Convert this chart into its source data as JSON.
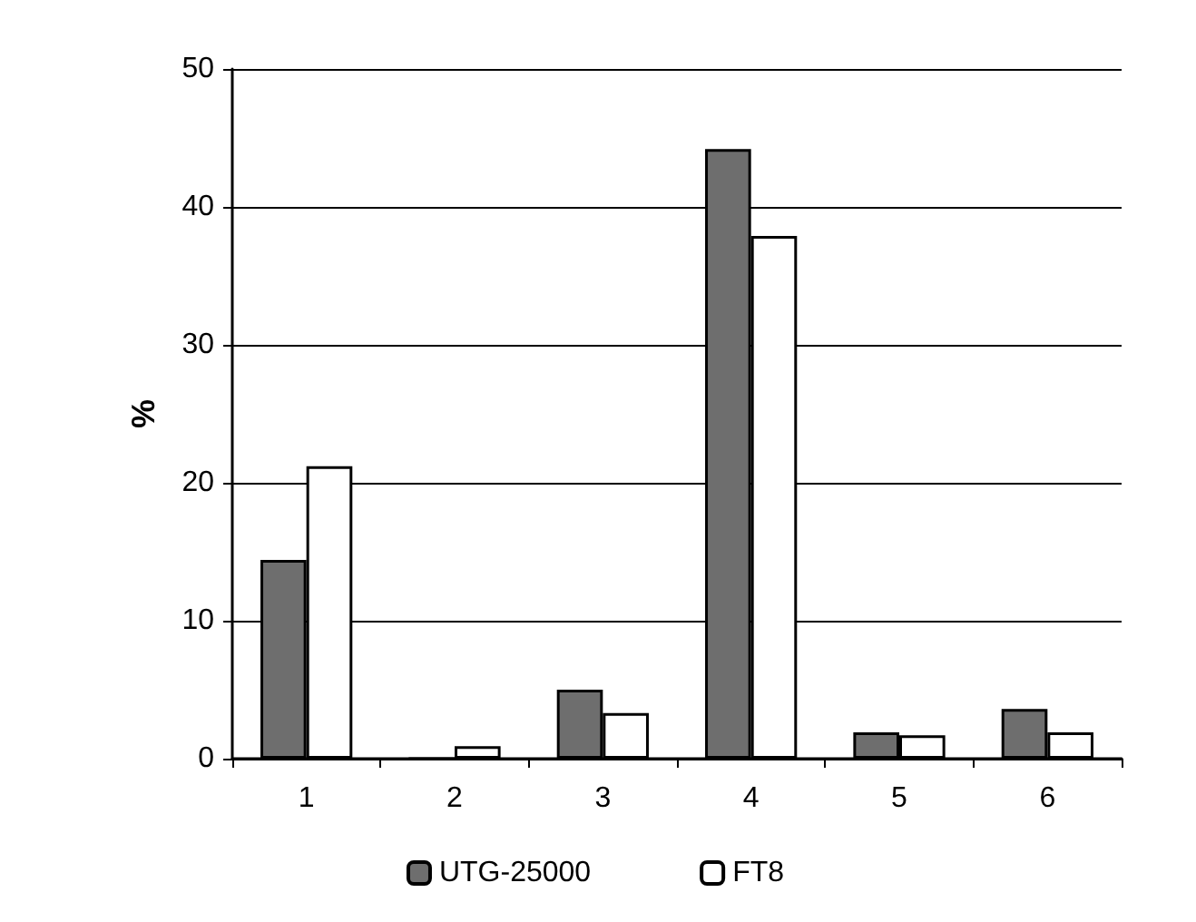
{
  "chart_data": {
    "type": "bar",
    "ylabel": "%",
    "categories": [
      "1",
      "2",
      "3",
      "4",
      "5",
      "6"
    ],
    "series": [
      {
        "name": "UTG-25000",
        "color": "#6e6e6e",
        "values": [
          14.4,
          0,
          5.0,
          44.2,
          1.9,
          3.6
        ]
      },
      {
        "name": "FT8",
        "color": "#ffffff",
        "values": [
          21.2,
          0.9,
          3.3,
          37.9,
          1.7,
          1.9
        ]
      }
    ],
    "ylim": [
      0,
      50
    ],
    "yticks": [
      0,
      10,
      20,
      30,
      40,
      50
    ],
    "grid": "y",
    "legend": "bottom"
  }
}
